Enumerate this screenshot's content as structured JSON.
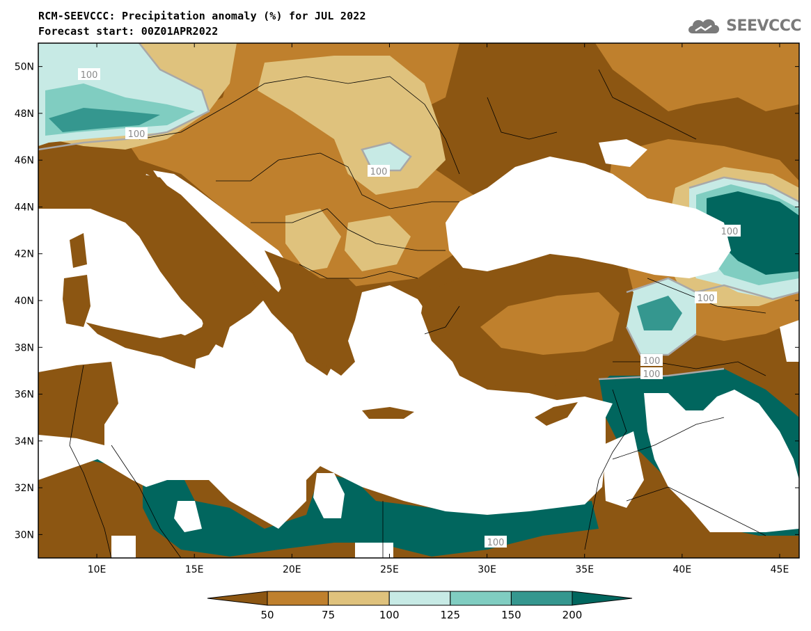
{
  "title": "RCM-SEEVCCC: Precipitation anomaly (%) for JUL 2022",
  "subtitle": "Forecast start: 00Z01APR2022",
  "logo": {
    "text": "SEEVCCC",
    "icon": "cloud-logo-icon"
  },
  "map": {
    "lon_range": [
      7,
      46
    ],
    "lat_range": [
      29,
      51
    ],
    "x_ticks": [
      "10E",
      "15E",
      "20E",
      "25E",
      "30E",
      "35E",
      "40E",
      "45E"
    ],
    "y_ticks": [
      "50N",
      "48N",
      "46N",
      "44N",
      "42N",
      "40N",
      "38N",
      "36N",
      "34N",
      "32N",
      "30N"
    ],
    "contour_labels": [
      "100",
      "100",
      "100",
      "100",
      "100",
      "100",
      "100",
      "100"
    ]
  },
  "colorbar": {
    "labels": [
      "50",
      "75",
      "100",
      "125",
      "150",
      "200"
    ],
    "colors": [
      "#8c5612",
      "#bf802d",
      "#dfc27d",
      "#c7eae5",
      "#80cdc1",
      "#35978f",
      "#01665e"
    ]
  },
  "colors": {
    "sea": "#ffffff",
    "dry_strong": "#8c5612",
    "dry": "#bf802d",
    "dry_light": "#dfc27d",
    "wet_light": "#c7eae5",
    "wet": "#80cdc1",
    "wet_more": "#35978f",
    "wet_strong": "#01665e",
    "contour_100": "#a8a8a8"
  }
}
